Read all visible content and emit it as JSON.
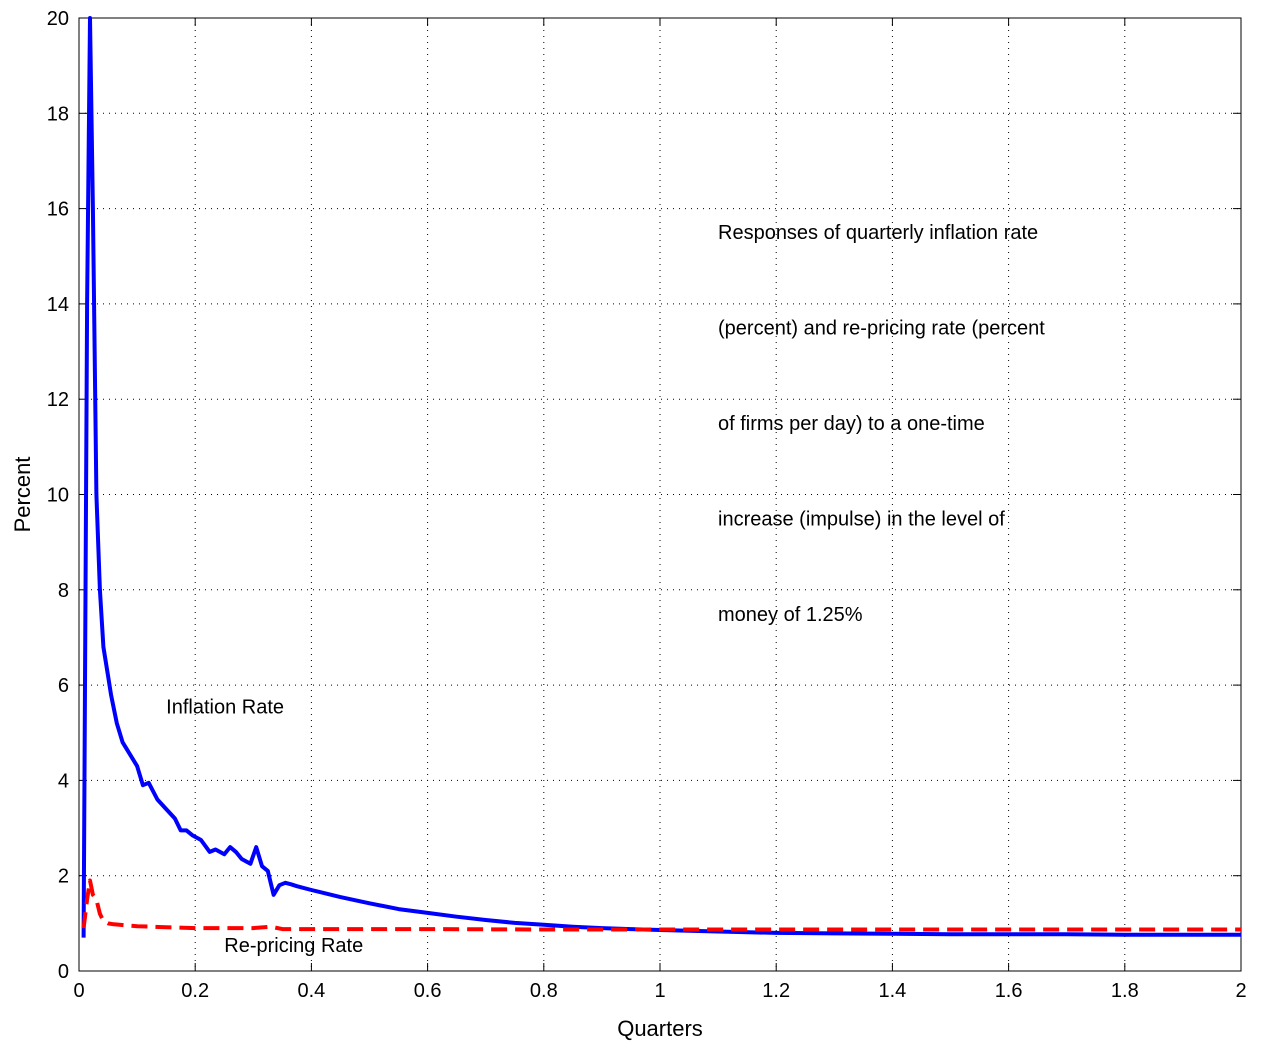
{
  "chart_data": {
    "type": "line",
    "xlabel": "Quarters",
    "ylabel": "Percent",
    "xlim": [
      0,
      2
    ],
    "ylim": [
      0,
      20
    ],
    "xticks": [
      "0",
      "0.2",
      "0.4",
      "0.6",
      "0.8",
      "1",
      "1.2",
      "1.4",
      "1.6",
      "1.8",
      "2"
    ],
    "yticks": [
      "0",
      "2",
      "4",
      "6",
      "8",
      "10",
      "12",
      "14",
      "16",
      "18",
      "20"
    ],
    "grid": true,
    "annotation_lines": [
      "Responses of quarterly inflation rate",
      "(percent) and re-pricing rate (percent",
      "of firms per day) to a one-time",
      "increase (impulse) in the level of",
      "money of 1.25%"
    ],
    "series": [
      {
        "name": "Inflation Rate",
        "color": "#0000ff",
        "style": "solid",
        "x": [
          0.008,
          0.014,
          0.019,
          0.024,
          0.03,
          0.036,
          0.042,
          0.05,
          0.055,
          0.065,
          0.075,
          0.085,
          0.1,
          0.11,
          0.12,
          0.135,
          0.15,
          0.165,
          0.175,
          0.185,
          0.195,
          0.21,
          0.225,
          0.235,
          0.25,
          0.26,
          0.27,
          0.28,
          0.295,
          0.305,
          0.315,
          0.325,
          0.335,
          0.345,
          0.355,
          0.365,
          0.375,
          0.4,
          0.45,
          0.5,
          0.55,
          0.6,
          0.65,
          0.7,
          0.75,
          0.8,
          0.85,
          0.9,
          0.95,
          1.0,
          1.1,
          1.2,
          1.3,
          1.4,
          1.5,
          1.6,
          1.7,
          1.8,
          1.9,
          2.0
        ],
        "y": [
          0.7,
          14.0,
          20.0,
          16.0,
          10.0,
          8.0,
          6.8,
          6.2,
          5.8,
          5.2,
          4.8,
          4.6,
          4.3,
          3.9,
          3.95,
          3.6,
          3.4,
          3.2,
          2.95,
          2.95,
          2.85,
          2.75,
          2.5,
          2.55,
          2.45,
          2.6,
          2.5,
          2.35,
          2.25,
          2.6,
          2.2,
          2.1,
          1.6,
          1.8,
          1.85,
          1.82,
          1.78,
          1.7,
          1.55,
          1.42,
          1.3,
          1.22,
          1.14,
          1.07,
          1.01,
          0.97,
          0.93,
          0.9,
          0.88,
          0.86,
          0.83,
          0.8,
          0.79,
          0.78,
          0.77,
          0.77,
          0.77,
          0.76,
          0.76,
          0.76
        ]
      },
      {
        "name": "Re-pricing Rate",
        "color": "#ff0000",
        "style": "dashed",
        "x": [
          0.008,
          0.014,
          0.019,
          0.024,
          0.03,
          0.036,
          0.042,
          0.05,
          0.06,
          0.08,
          0.1,
          0.15,
          0.2,
          0.25,
          0.3,
          0.33,
          0.35,
          0.4,
          0.5,
          0.6,
          0.8,
          1.0,
          1.2,
          1.4,
          1.6,
          1.8,
          2.0
        ],
        "y": [
          0.9,
          1.5,
          1.9,
          1.6,
          1.5,
          1.2,
          1.05,
          1.0,
          0.98,
          0.96,
          0.94,
          0.92,
          0.9,
          0.9,
          0.9,
          0.93,
          0.88,
          0.88,
          0.88,
          0.88,
          0.87,
          0.87,
          0.87,
          0.87,
          0.87,
          0.87,
          0.87
        ]
      }
    ],
    "series_labels": [
      {
        "text": "Inflation Rate",
        "x": 0.15,
        "y": 5.4
      },
      {
        "text": "Re-pricing Rate",
        "x": 0.25,
        "y": 0.4
      }
    ]
  }
}
